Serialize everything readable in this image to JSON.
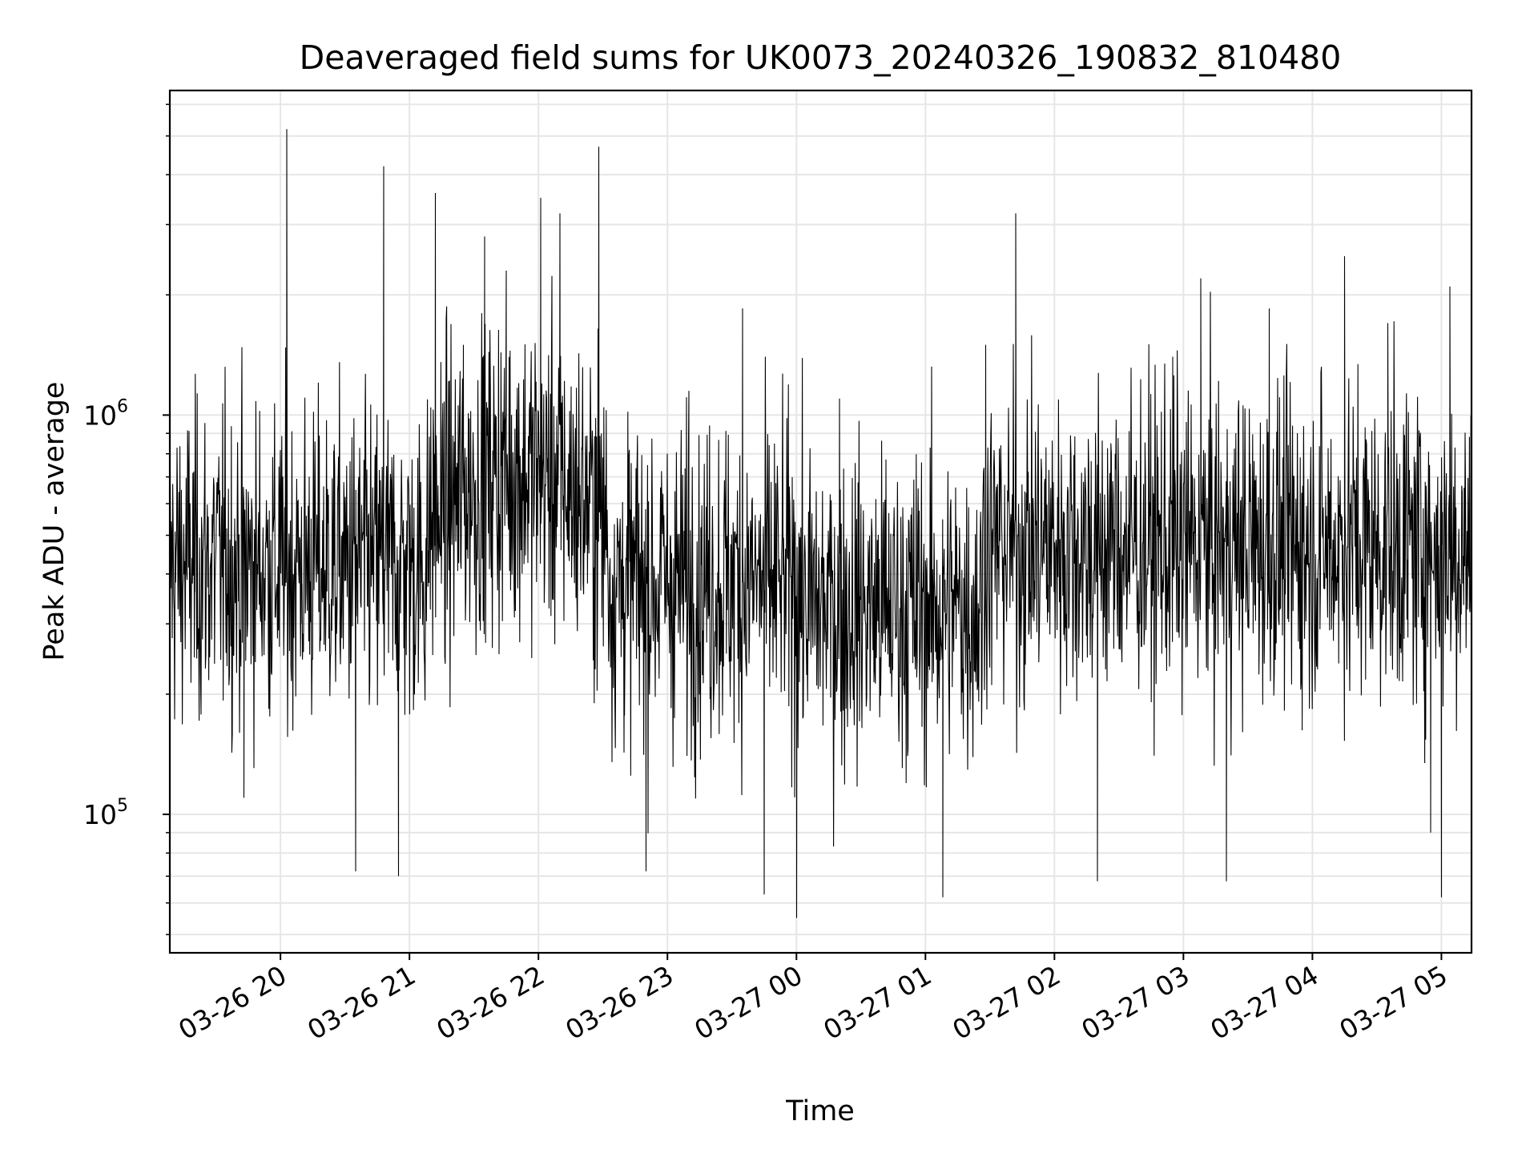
{
  "chart_data": {
    "type": "line",
    "title": "Deaveraged field sums for UK0073_20240326_190832_810480",
    "xlabel": "Time",
    "ylabel": "Peak ADU - average",
    "yscale": "log",
    "grid": true,
    "x_range": [
      "2024-03-26 19:08:32",
      "2024-03-27 05:14:00"
    ],
    "ylim": [
      45000,
      6500000
    ],
    "x_tick_labels": [
      "03-26 20",
      "03-26 21",
      "03-26 22",
      "03-26 23",
      "03-27 00",
      "03-27 01",
      "03-27 02",
      "03-27 03",
      "03-27 04",
      "03-27 05"
    ],
    "x_ticks": [
      "2024-03-26 20:00",
      "2024-03-26 21:00",
      "2024-03-26 22:00",
      "2024-03-26 23:00",
      "2024-03-27 00:00",
      "2024-03-27 01:00",
      "2024-03-27 02:00",
      "2024-03-27 03:00",
      "2024-03-27 04:00",
      "2024-03-27 05:00"
    ],
    "y_ticks": [
      {
        "value": 100000,
        "base": "10",
        "exp": "5"
      },
      {
        "value": 1000000,
        "base": "10",
        "exp": "6"
      }
    ],
    "series": [
      {
        "color": "#000000",
        "points": [
          [
            "2024-03-26 19:09",
            420000
          ],
          [
            "2024-03-26 19:20",
            380000
          ],
          [
            "2024-03-26 19:35",
            520000
          ],
          [
            "2024-03-26 19:43",
            110000
          ],
          [
            "2024-03-26 19:52",
            480000
          ],
          [
            "2024-03-26 20:03",
            5200000
          ],
          [
            "2024-03-26 20:10",
            300000
          ],
          [
            "2024-03-26 20:25",
            420000
          ],
          [
            "2024-03-26 20:35",
            72000
          ],
          [
            "2024-03-26 20:48",
            4200000
          ],
          [
            "2024-03-26 20:55",
            70000
          ],
          [
            "2024-03-26 21:12",
            3600000
          ],
          [
            "2024-03-26 21:25",
            1500000
          ],
          [
            "2024-03-26 21:35",
            2800000
          ],
          [
            "2024-03-26 21:45",
            2300000
          ],
          [
            "2024-03-26 22:01",
            3500000
          ],
          [
            "2024-03-26 22:10",
            3200000
          ],
          [
            "2024-03-26 22:28",
            4700000
          ],
          [
            "2024-03-26 22:40",
            320000
          ],
          [
            "2024-03-26 22:50",
            72000
          ],
          [
            "2024-03-26 23:10",
            1150000
          ],
          [
            "2024-03-26 23:35",
            1850000
          ],
          [
            "2024-03-26 23:45",
            63000
          ],
          [
            "2024-03-27 00:00",
            55000
          ],
          [
            "2024-03-27 00:20",
            1100000
          ],
          [
            "2024-03-27 00:45",
            420000
          ],
          [
            "2024-03-27 01:08",
            62000
          ],
          [
            "2024-03-27 01:28",
            1500000
          ],
          [
            "2024-03-27 01:42",
            3200000
          ],
          [
            "2024-03-27 02:00",
            480000
          ],
          [
            "2024-03-27 02:20",
            68000
          ],
          [
            "2024-03-27 02:40",
            620000
          ],
          [
            "2024-03-27 02:55",
            1400000
          ],
          [
            "2024-03-27 03:08",
            2200000
          ],
          [
            "2024-03-27 03:20",
            68000
          ],
          [
            "2024-03-27 03:40",
            1850000
          ],
          [
            "2024-03-27 04:05",
            480000
          ],
          [
            "2024-03-27 04:15",
            2500000
          ],
          [
            "2024-03-27 04:35",
            1700000
          ],
          [
            "2024-03-27 04:55",
            90000
          ],
          [
            "2024-03-27 05:00",
            62000
          ],
          [
            "2024-03-27 05:04",
            2100000
          ],
          [
            "2024-03-27 05:08",
            500000
          ],
          [
            "2024-03-27 05:13",
            330000
          ]
        ]
      }
    ]
  }
}
